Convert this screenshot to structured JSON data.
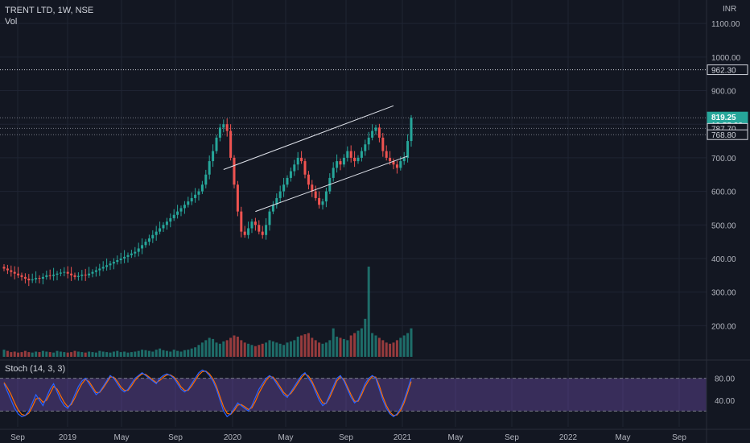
{
  "header": {
    "symbol": "TRENT LTD, 1W, NSE",
    "volume_label": "Vol",
    "currency": "INR"
  },
  "stoch_label": "Stoch (14, 3, 3)",
  "price_tags": [
    {
      "text": "962.30",
      "value": 962.3,
      "bg": "#131722",
      "fg": "#d1d4dc",
      "border": "#d1d4dc"
    },
    {
      "text": "819.25",
      "value": 819.25,
      "bg": "#26a69a",
      "fg": "#ffffff",
      "border": "#26a69a",
      "sub": "19:55:38"
    },
    {
      "text": "787.70",
      "value": 787.7,
      "bg": "#131722",
      "fg": "#d1d4dc",
      "border": "#d1d4dc"
    },
    {
      "text": "768.80",
      "value": 768.8,
      "bg": "#131722",
      "fg": "#d1d4dc",
      "border": "#d1d4dc"
    }
  ],
  "colors": {
    "background": "#131722",
    "up": "#26a69a",
    "down": "#ef5350",
    "grid": "#1f2433",
    "stoch_k": "#2962ff",
    "stoch_d": "#ff6d00",
    "stoch_band": "#7e57c2"
  },
  "chart_data": {
    "type": "candlestick",
    "price_axis_ticks": [
      200,
      300,
      400,
      500,
      600,
      700,
      800,
      900,
      1000,
      1100
    ],
    "price_axis_labels": [
      "200.00",
      "300.00",
      "400.00",
      "500.00",
      "600.00",
      "700.00",
      "800.00",
      "900.00",
      "1000.00",
      "1100.00"
    ],
    "ylim": [
      100,
      1170
    ],
    "time_axis_labels": [
      "Sep",
      "2019",
      "May",
      "Sep",
      "2020",
      "May",
      "Sep",
      "2021",
      "May",
      "Sep",
      "2022",
      "May",
      "Sep"
    ],
    "close_series": [
      370,
      365,
      360,
      355,
      350,
      345,
      340,
      335,
      338,
      342,
      340,
      345,
      350,
      348,
      352,
      355,
      358,
      360,
      355,
      350,
      345,
      348,
      352,
      350,
      355,
      360,
      365,
      370,
      375,
      380,
      385,
      390,
      395,
      400,
      405,
      410,
      415,
      420,
      430,
      440,
      450,
      460,
      470,
      480,
      490,
      500,
      510,
      520,
      530,
      540,
      550,
      560,
      570,
      580,
      590,
      600,
      620,
      650,
      690,
      720,
      760,
      790,
      800,
      780,
      700,
      620,
      540,
      480,
      470,
      490,
      510,
      500,
      480,
      470,
      500,
      540,
      560,
      580,
      600,
      620,
      640,
      660,
      680,
      700,
      690,
      650,
      620,
      600,
      580,
      560,
      570,
      600,
      640,
      670,
      690,
      680,
      700,
      720,
      700,
      690,
      700,
      720,
      740,
      760,
      780,
      790,
      760,
      720,
      700,
      690,
      680,
      670,
      690,
      700,
      750,
      819.25
    ],
    "volume": [
      30,
      25,
      20,
      22,
      18,
      20,
      25,
      20,
      18,
      22,
      20,
      25,
      22,
      20,
      18,
      25,
      22,
      20,
      18,
      20,
      25,
      22,
      20,
      18,
      22,
      20,
      18,
      25,
      22,
      20,
      18,
      22,
      25,
      20,
      22,
      18,
      20,
      22,
      25,
      30,
      28,
      25,
      22,
      30,
      35,
      28,
      25,
      22,
      30,
      25,
      22,
      28,
      30,
      35,
      40,
      50,
      60,
      70,
      80,
      75,
      60,
      55,
      65,
      70,
      80,
      90,
      85,
      70,
      60,
      55,
      50,
      45,
      50,
      55,
      60,
      70,
      65,
      60,
      55,
      50,
      60,
      65,
      70,
      85,
      90,
      95,
      100,
      80,
      70,
      60,
      55,
      60,
      70,
      120,
      85,
      80,
      75,
      70,
      90,
      100,
      110,
      120,
      160,
      380,
      100,
      90,
      80,
      70,
      60,
      55,
      60,
      70,
      80,
      90,
      100,
      120
    ],
    "stochastic": {
      "upper_band": 80,
      "lower_band": 20,
      "axis_labels": [
        "80.00",
        "40.00"
      ],
      "k_series": [
        70,
        55,
        40,
        25,
        15,
        10,
        12,
        20,
        35,
        50,
        40,
        30,
        45,
        60,
        70,
        55,
        40,
        30,
        25,
        35,
        50,
        65,
        75,
        80,
        70,
        60,
        50,
        55,
        65,
        75,
        85,
        80,
        70,
        60,
        55,
        60,
        70,
        80,
        85,
        90,
        85,
        80,
        75,
        70,
        80,
        85,
        88,
        85,
        80,
        70,
        60,
        55,
        60,
        70,
        80,
        90,
        95,
        92,
        85,
        75,
        60,
        40,
        20,
        10,
        15,
        25,
        35,
        30,
        25,
        20,
        30,
        45,
        60,
        70,
        80,
        85,
        80,
        70,
        60,
        50,
        45,
        55,
        65,
        75,
        85,
        90,
        80,
        70,
        55,
        40,
        30,
        35,
        50,
        65,
        80,
        85,
        75,
        60,
        45,
        35,
        40,
        55,
        70,
        80,
        85,
        80,
        60,
        40,
        25,
        15,
        10,
        15,
        25,
        40,
        60,
        80
      ],
      "d_series": [
        72,
        62,
        50,
        35,
        22,
        14,
        12,
        16,
        28,
        42,
        44,
        36,
        40,
        52,
        65,
        60,
        48,
        36,
        28,
        32,
        44,
        58,
        70,
        78,
        74,
        64,
        54,
        54,
        62,
        72,
        82,
        82,
        74,
        64,
        58,
        58,
        66,
        76,
        83,
        88,
        87,
        82,
        77,
        72,
        76,
        82,
        86,
        86,
        82,
        74,
        64,
        58,
        58,
        66,
        76,
        86,
        92,
        93,
        88,
        79,
        65,
        46,
        28,
        16,
        14,
        21,
        31,
        32,
        28,
        23,
        26,
        38,
        53,
        65,
        76,
        83,
        82,
        74,
        64,
        54,
        48,
        52,
        61,
        71,
        81,
        88,
        84,
        74,
        60,
        46,
        35,
        34,
        45,
        60,
        75,
        83,
        78,
        64,
        50,
        38,
        38,
        50,
        65,
        76,
        83,
        82,
        66,
        46,
        30,
        18,
        12,
        13,
        21,
        35,
        54,
        74
      ]
    },
    "drawings": [
      {
        "name": "channel-upper-line",
        "from": {
          "index": 62,
          "price": 665
        },
        "to": {
          "index": 110,
          "price": 855
        }
      },
      {
        "name": "channel-lower-line",
        "from": {
          "index": 71,
          "price": 540
        },
        "to": {
          "index": 114,
          "price": 705
        }
      }
    ]
  }
}
